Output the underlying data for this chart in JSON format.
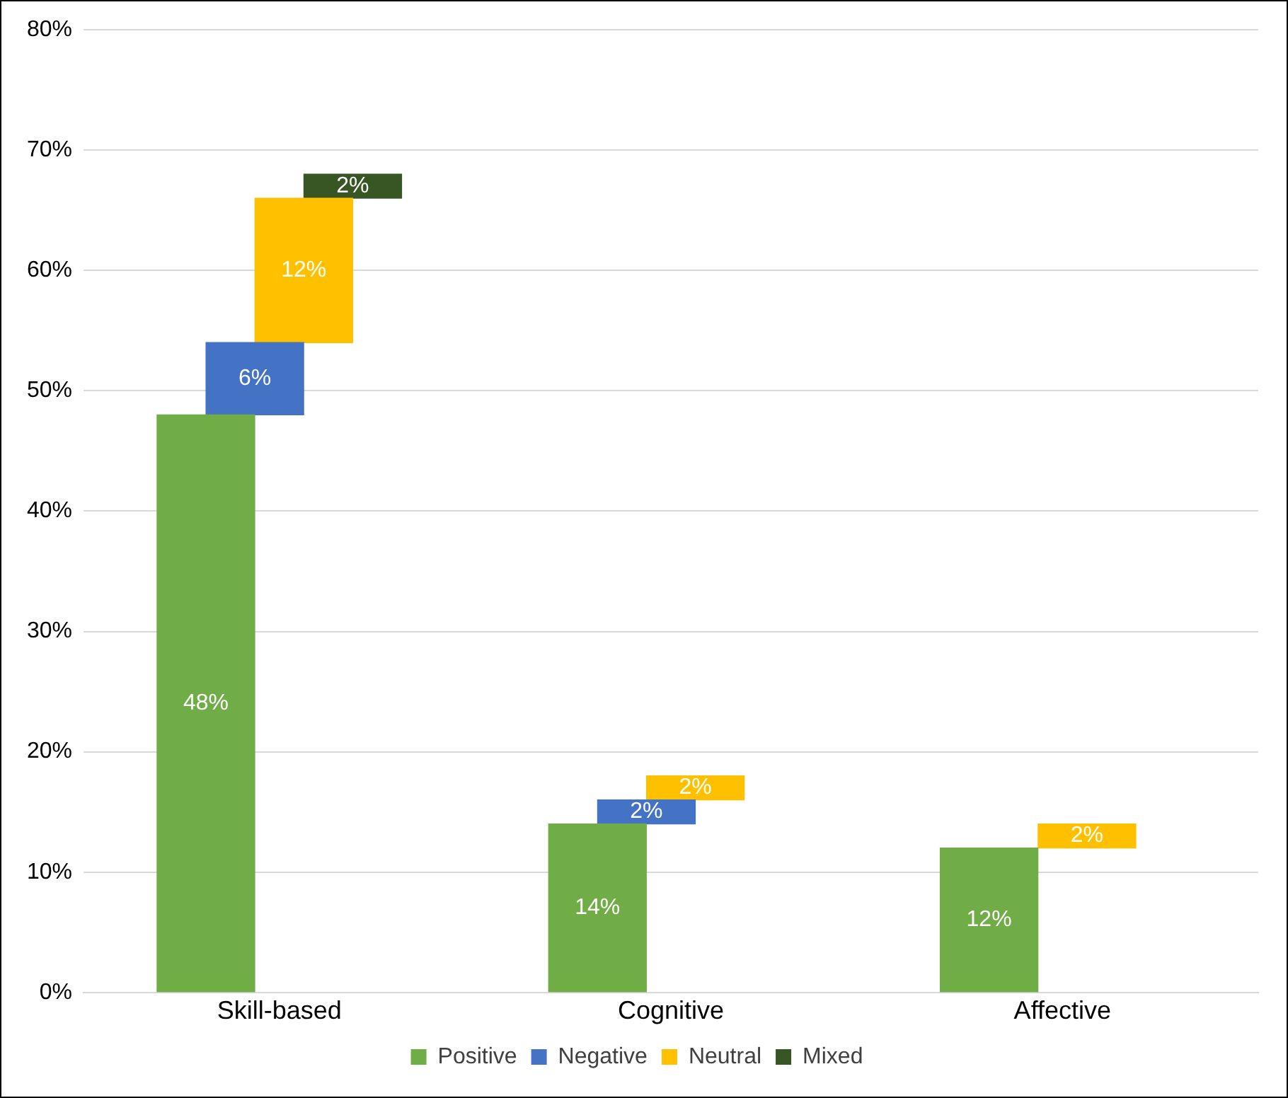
{
  "chart_data": {
    "type": "bar",
    "categories": [
      "Skill-based",
      "Cognitive",
      "Affective"
    ],
    "series": [
      {
        "name": "Positive",
        "color": "#70ad47",
        "values": [
          48,
          14,
          12
        ],
        "base": [
          0,
          0,
          0
        ],
        "value_labels": [
          "48%",
          "14%",
          "12%"
        ]
      },
      {
        "name": "Negative",
        "color": "#4472c4",
        "values": [
          6,
          2,
          null
        ],
        "base": [
          48,
          14,
          null
        ],
        "value_labels": [
          "6%",
          "2%",
          null
        ]
      },
      {
        "name": "Neutral",
        "color": "#ffc000",
        "values": [
          12,
          2,
          2
        ],
        "base": [
          54,
          16,
          12
        ],
        "value_labels": [
          "12%",
          "2%",
          "2%"
        ]
      },
      {
        "name": "Mixed",
        "color": "#375623",
        "values": [
          2,
          null,
          null
        ],
        "base": [
          66,
          null,
          null
        ],
        "value_labels": [
          "2%",
          null,
          null
        ]
      }
    ],
    "ylim": [
      0,
      80
    ],
    "yticks": [
      {
        "value": 0,
        "label": "0%"
      },
      {
        "value": 10,
        "label": "10%"
      },
      {
        "value": 20,
        "label": "20%"
      },
      {
        "value": 30,
        "label": "30%"
      },
      {
        "value": 40,
        "label": "40%"
      },
      {
        "value": 50,
        "label": "50%"
      },
      {
        "value": 60,
        "label": "60%"
      },
      {
        "value": 70,
        "label": "70%"
      },
      {
        "value": 80,
        "label": "80%"
      }
    ],
    "grid": "y",
    "legend": "bottom"
  }
}
